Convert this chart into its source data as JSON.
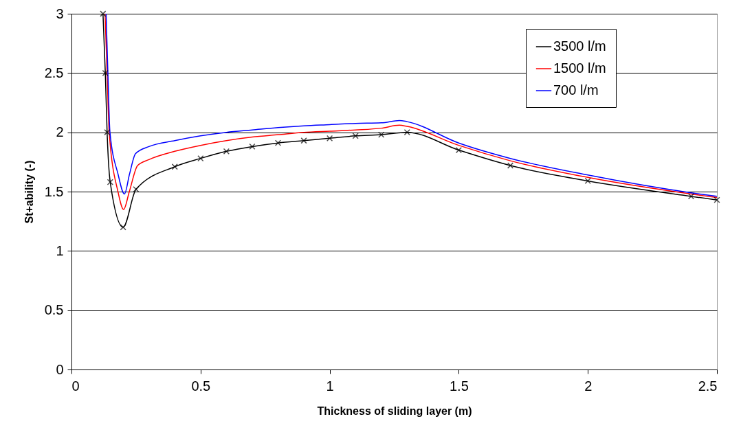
{
  "chart_data": {
    "type": "line",
    "xlabel": "Thickness of sliding layer (m)",
    "ylabel": "St+ability (-)",
    "xlim": [
      0,
      2.5
    ],
    "ylim": [
      0,
      3
    ],
    "xticks": [
      0,
      0.5,
      1,
      1.5,
      2,
      2.5
    ],
    "yticks": [
      0,
      0.5,
      1,
      1.5,
      2,
      2.5,
      3
    ],
    "grid": "y",
    "legend": "top right",
    "line_style": "solid",
    "series": [
      {
        "name": "3500 l/m",
        "color": "#000000",
        "marker": "cross",
        "x": [
          0.122,
          0.131,
          0.138,
          0.15,
          0.2,
          0.25,
          0.4,
          0.5,
          0.6,
          0.7,
          0.8,
          0.9,
          1.0,
          1.1,
          1.2,
          1.3,
          1.5,
          1.7,
          2.0,
          2.4,
          2.5
        ],
        "values": [
          3,
          2.5,
          2.0,
          1.58,
          1.2,
          1.52,
          1.71,
          1.78,
          1.84,
          1.88,
          1.91,
          1.93,
          1.95,
          1.97,
          1.98,
          2.0,
          1.85,
          1.72,
          1.59,
          1.46,
          1.43
        ]
      },
      {
        "name": "1500 l/m",
        "color": "#ff0000",
        "marker": "none",
        "x": [
          0.13,
          0.138,
          0.146,
          0.18,
          0.202,
          0.224,
          0.256,
          0.3,
          0.4,
          0.5,
          0.6,
          0.7,
          0.8,
          0.9,
          1.0,
          1.1,
          1.2,
          1.27,
          1.3,
          1.5,
          1.7,
          2.0,
          2.4,
          2.5
        ],
        "values": [
          3,
          2.5,
          2.0,
          1.5,
          1.35,
          1.5,
          1.72,
          1.77,
          1.84,
          1.89,
          1.93,
          1.96,
          1.98,
          2.0,
          2.01,
          2.02,
          2.035,
          2.06,
          2.05,
          1.89,
          1.76,
          1.62,
          1.48,
          1.45
        ]
      },
      {
        "name": "700 l/m",
        "color": "#0000ff",
        "marker": "none",
        "x": [
          0.134,
          0.141,
          0.149,
          0.18,
          0.205,
          0.225,
          0.248,
          0.3,
          0.4,
          0.5,
          0.6,
          0.7,
          0.8,
          0.9,
          1.0,
          1.1,
          1.2,
          1.27,
          1.3,
          1.5,
          1.7,
          2.0,
          2.4,
          2.5
        ],
        "values": [
          3,
          2.5,
          2.0,
          1.65,
          1.48,
          1.65,
          1.82,
          1.88,
          1.93,
          1.97,
          2.0,
          2.02,
          2.04,
          2.055,
          2.065,
          2.075,
          2.08,
          2.1,
          2.09,
          1.91,
          1.78,
          1.64,
          1.49,
          1.46
        ]
      }
    ]
  }
}
